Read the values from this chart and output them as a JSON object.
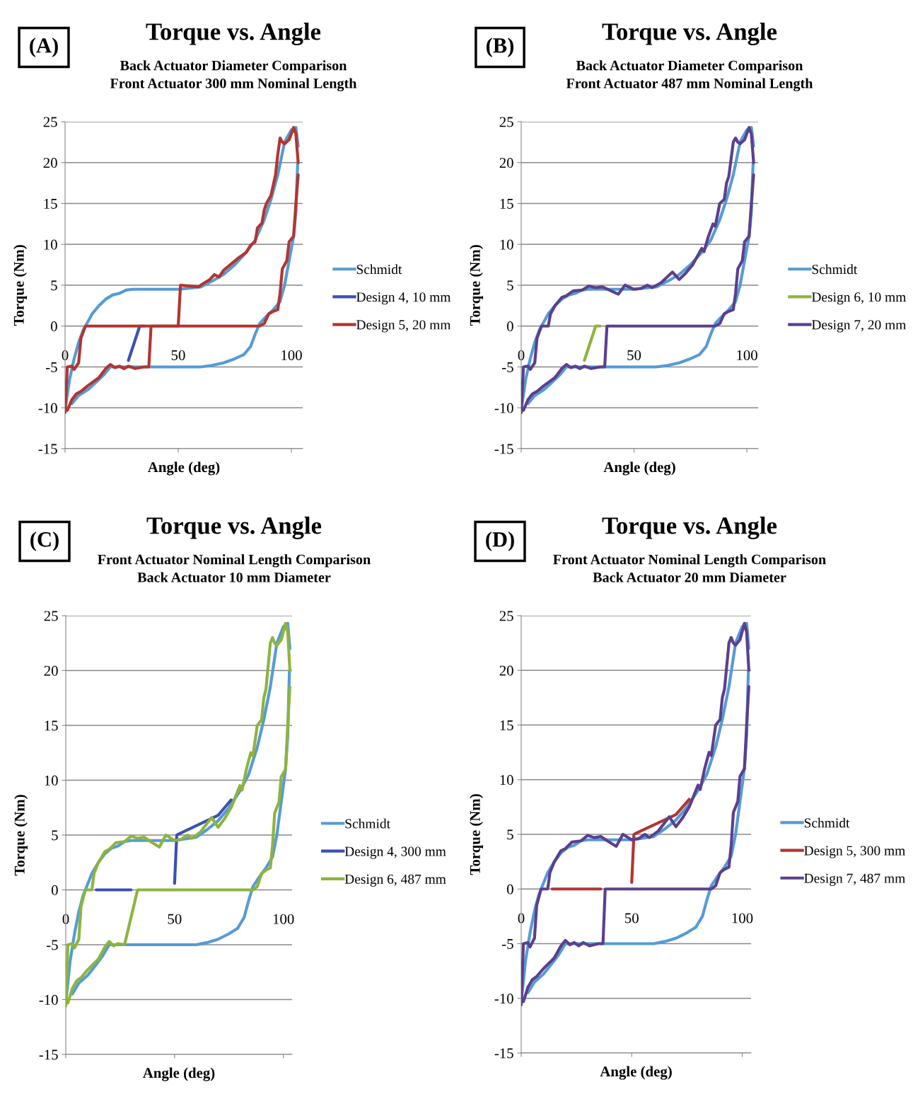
{
  "chart_data": [
    {
      "type": "line",
      "title": "Torque vs. Angle",
      "subtitle": "Back Actuator Diameter Comparison\nFront Actuator 300 mm Nominal Length",
      "xlabel": "Angle (deg)",
      "ylabel": "Torque (Nm)",
      "annotations": [
        "(A)"
      ],
      "xlim": [
        0,
        105
      ],
      "ylim": [
        -15,
        25
      ],
      "xticks": [
        0,
        50,
        100
      ],
      "yticks": [
        -15,
        -10,
        -5,
        0,
        5,
        10,
        15,
        20,
        25
      ],
      "grid": "y",
      "legend": "right",
      "series": [
        {
          "name": "Schmidt",
          "color": "#559bd6",
          "x": [
            0,
            2,
            4,
            6,
            8,
            10,
            12,
            15,
            18,
            21,
            24,
            27,
            30,
            40,
            50,
            60,
            65,
            70,
            75,
            80,
            84,
            88,
            91,
            94,
            97,
            100,
            102,
            103
          ],
          "values": [
            -10.3,
            -6.5,
            -4,
            -2,
            -0.5,
            0.5,
            1.5,
            2.5,
            3.3,
            3.8,
            4.0,
            4.4,
            4.5,
            4.5,
            4.5,
            4.8,
            5.5,
            6.3,
            7.5,
            9,
            10.5,
            13,
            15.5,
            18.5,
            22.5,
            24,
            24.3,
            22
          ]
        },
        {
          "color": "#559bd6",
          "x": [
            3,
            6,
            10,
            14,
            17,
            20,
            25,
            40,
            60,
            65,
            70,
            75,
            79,
            82,
            84,
            86,
            89,
            92,
            95,
            97,
            99,
            101,
            102,
            102.5,
            102.8
          ],
          "values": [
            -9.5,
            -8.5,
            -7.8,
            -6.8,
            -6,
            -5,
            -5,
            -5,
            -5,
            -4.8,
            -4.5,
            -4,
            -3.5,
            -2.5,
            -1,
            0.3,
            1.2,
            2,
            3,
            5,
            8,
            11,
            14,
            18,
            20
          ]
        },
        {
          "name": "Design 4, 10 mm",
          "color": "#3c50b4",
          "x": [
            28,
            33,
            35
          ],
          "values": [
            -4.2,
            0,
            0
          ]
        },
        {
          "name": "Design 5, 20 mm",
          "color": "#b3352f",
          "x": [
            0,
            1,
            3,
            4,
            6,
            7,
            9,
            50,
            51,
            55,
            59,
            61,
            64,
            66,
            68,
            70,
            73,
            76,
            80,
            82,
            84,
            85,
            87,
            88,
            89,
            91,
            93,
            94,
            95,
            96,
            97,
            99,
            101,
            102,
            103
          ],
          "values": [
            -10.6,
            -5,
            -4.9,
            -5.3,
            -4.5,
            -1.5,
            0,
            0,
            5,
            4.9,
            4.8,
            5.2,
            5.7,
            6.3,
            6.0,
            6.8,
            7.5,
            8.2,
            9,
            9.9,
            10.3,
            12,
            12.6,
            14.2,
            15,
            16,
            18.5,
            21,
            23,
            22.5,
            22.3,
            22.8,
            24.3,
            23.5,
            20
          ]
        },
        {
          "color": "#b3352f",
          "x": [
            1,
            3,
            5,
            7,
            10,
            13,
            15,
            18,
            20,
            22,
            24,
            26,
            28,
            31,
            35,
            37,
            38,
            86,
            88,
            90,
            92,
            94,
            95,
            96,
            98,
            99,
            101,
            102,
            103
          ],
          "values": [
            -10.3,
            -9,
            -8.3,
            -8,
            -7.3,
            -6.7,
            -6.3,
            -5.2,
            -4.7,
            -5.1,
            -4.9,
            -5.2,
            -4.9,
            -5.2,
            -5,
            -5,
            0,
            0,
            0.3,
            1.5,
            1.8,
            2,
            4,
            7,
            8,
            10.3,
            11,
            15,
            18.5
          ]
        }
      ]
    },
    {
      "type": "line",
      "title": "Torque vs. Angle",
      "subtitle": "Back Actuator Diameter Comparison\nFront Actuator 487 mm Nominal Length",
      "xlabel": "Angle (deg)",
      "ylabel": "Torque (Nm)",
      "annotations": [
        "(B)"
      ],
      "xlim": [
        0,
        105
      ],
      "ylim": [
        -15,
        25
      ],
      "xticks": [
        0,
        50,
        100
      ],
      "yticks": [
        -15,
        -10,
        -5,
        0,
        5,
        10,
        15,
        20,
        25
      ],
      "grid": "y",
      "legend": "right",
      "series": [
        {
          "name": "Schmidt",
          "color": "#559bd6",
          "x": [
            0,
            2,
            4,
            6,
            8,
            10,
            12,
            15,
            18,
            21,
            24,
            27,
            30,
            40,
            50,
            60,
            65,
            70,
            75,
            80,
            84,
            88,
            91,
            94,
            97,
            100,
            102,
            103
          ],
          "values": [
            -10.3,
            -6.5,
            -4,
            -2,
            -0.5,
            0.5,
            1.5,
            2.5,
            3.3,
            3.8,
            4.0,
            4.4,
            4.5,
            4.5,
            4.5,
            4.8,
            5.5,
            6.3,
            7.5,
            9,
            10.5,
            13,
            15.5,
            18.5,
            22.5,
            24,
            24.3,
            22
          ]
        },
        {
          "color": "#559bd6",
          "x": [
            3,
            6,
            10,
            14,
            17,
            20,
            25,
            40,
            60,
            65,
            70,
            75,
            79,
            82,
            84,
            86,
            89,
            92,
            95,
            97,
            99,
            101,
            102,
            102.5,
            102.8
          ],
          "values": [
            -9.5,
            -8.5,
            -7.8,
            -6.8,
            -6,
            -5,
            -5,
            -5,
            -5,
            -4.8,
            -4.5,
            -4,
            -3.5,
            -2.5,
            -1,
            0.3,
            1.2,
            2,
            3,
            5,
            8,
            11,
            14,
            18,
            20
          ]
        },
        {
          "name": "Design 6, 10 mm",
          "color": "#8db43e",
          "x": [
            28,
            33,
            35
          ],
          "values": [
            -4.2,
            0,
            0
          ]
        },
        {
          "name": "Design 7, 20 mm",
          "color": "#5c3f8e",
          "x": [
            0,
            1,
            3,
            4,
            6,
            7,
            9,
            12,
            13,
            15,
            18,
            20,
            23,
            27,
            30,
            33,
            36,
            39,
            43,
            46,
            50,
            53,
            56,
            58,
            62,
            67,
            70,
            73,
            76,
            78,
            80,
            81,
            83,
            85,
            86,
            88,
            90,
            91,
            92,
            94,
            95,
            96,
            97,
            99,
            101,
            102,
            103
          ],
          "values": [
            -10.6,
            -5,
            -4.9,
            -5.3,
            -4.5,
            -1.5,
            0,
            0,
            1.5,
            2.5,
            3.5,
            3.7,
            4.3,
            4.4,
            4.9,
            4.7,
            4.8,
            4.4,
            3.9,
            5,
            4.5,
            4.6,
            5.0,
            4.7,
            5.3,
            6.6,
            5.7,
            6.5,
            7.5,
            8.5,
            9.5,
            9.1,
            11,
            12.5,
            12.2,
            15,
            15.5,
            17.5,
            18.3,
            22.5,
            23,
            22.5,
            22.3,
            22.8,
            24.3,
            23.5,
            20
          ]
        },
        {
          "color": "#5c3f8e",
          "x": [
            1,
            3,
            5,
            7,
            10,
            13,
            15,
            18,
            20,
            22,
            24,
            26,
            28,
            31,
            35,
            37,
            38,
            86,
            88,
            90,
            92,
            94,
            95,
            96,
            98,
            99,
            101,
            102,
            103
          ],
          "values": [
            -10.3,
            -9,
            -8.3,
            -8,
            -7.3,
            -6.7,
            -6.3,
            -5.2,
            -4.7,
            -5.1,
            -4.9,
            -5.2,
            -4.9,
            -5.2,
            -5,
            -5,
            0,
            0,
            0.3,
            1.5,
            1.8,
            2,
            4,
            7,
            8,
            10.3,
            11,
            15,
            18.5
          ]
        }
      ]
    },
    {
      "type": "line",
      "title": "Torque vs. Angle",
      "subtitle": "Front Actuator Nominal Length Comparison\nBack Actuator 10 mm Diameter",
      "xlabel": "Angle (deg)",
      "ylabel": "Torque (Nm)",
      "annotations": [
        "(C)"
      ],
      "xlim": [
        0,
        104
      ],
      "ylim": [
        -15,
        25
      ],
      "xticks": [
        0,
        50,
        100
      ],
      "yticks": [
        -15,
        -10,
        -5,
        0,
        5,
        10,
        15,
        20,
        25
      ],
      "grid": "y",
      "legend": "right",
      "series": [
        {
          "name": "Schmidt",
          "color": "#559bd6",
          "x": [
            0,
            2,
            4,
            6,
            8,
            10,
            12,
            15,
            18,
            21,
            24,
            27,
            30,
            40,
            50,
            60,
            65,
            70,
            75,
            80,
            84,
            88,
            91,
            94,
            97,
            100,
            102,
            103
          ],
          "values": [
            -10.3,
            -6.5,
            -4,
            -2,
            -0.5,
            0.5,
            1.5,
            2.5,
            3.3,
            3.8,
            4.0,
            4.4,
            4.5,
            4.5,
            4.5,
            4.8,
            5.5,
            6.3,
            7.5,
            9,
            10.5,
            13,
            15.5,
            18.5,
            22.5,
            24,
            24.3,
            22
          ]
        },
        {
          "color": "#559bd6",
          "x": [
            3,
            6,
            10,
            14,
            17,
            20,
            25,
            40,
            60,
            65,
            70,
            75,
            79,
            82,
            84,
            86,
            89,
            92,
            95,
            97,
            99,
            101,
            102,
            102.5,
            102.8
          ],
          "values": [
            -9.5,
            -8.5,
            -7.8,
            -6.8,
            -6,
            -5,
            -5,
            -5,
            -5,
            -4.8,
            -4.5,
            -4,
            -3.5,
            -2.5,
            -1,
            0.3,
            1.2,
            2,
            3,
            5,
            8,
            11,
            14,
            18,
            20
          ]
        },
        {
          "name": "Design 4, 300 mm",
          "color": "#3c50b4",
          "x": [
            14,
            30,
            40,
            50,
            51,
            52,
            70,
            73,
            76
          ],
          "values": [
            0,
            0,
            null,
            0.6,
            5,
            5.1,
            6.8,
            7.5,
            8.2
          ]
        },
        {
          "name": "Design 6, 487 mm",
          "color": "#8db43e",
          "x": [
            0,
            1,
            3,
            4,
            6,
            7,
            9,
            12,
            13,
            15,
            18,
            20,
            23,
            27,
            30,
            33,
            36,
            39,
            43,
            46,
            50,
            53,
            56,
            58,
            62,
            67,
            70,
            73,
            76,
            78,
            80,
            81,
            83,
            85,
            86,
            88,
            90,
            91,
            92,
            94,
            95,
            96,
            97,
            99,
            101,
            102,
            103
          ],
          "values": [
            -10.6,
            -5,
            -4.9,
            -5.3,
            -4.5,
            -1.5,
            0,
            0,
            1.5,
            2.5,
            3.5,
            3.7,
            4.3,
            4.4,
            4.9,
            4.7,
            4.8,
            4.4,
            3.9,
            5,
            4.5,
            4.6,
            5.0,
            4.7,
            5.3,
            6.6,
            5.7,
            6.5,
            7.5,
            8.5,
            9.5,
            9.1,
            11,
            12.5,
            12.2,
            15,
            15.5,
            17.5,
            18.3,
            22.5,
            23,
            22.5,
            22.3,
            22.8,
            24.3,
            23.5,
            20
          ]
        },
        {
          "color": "#8db43e",
          "x": [
            1,
            3,
            5,
            7,
            10,
            13,
            15,
            18,
            20,
            22,
            24,
            27,
            33,
            86,
            88,
            90,
            92,
            94,
            95,
            96,
            98,
            99,
            101,
            102,
            103
          ],
          "values": [
            -10.3,
            -9,
            -8.3,
            -8,
            -7.3,
            -6.7,
            -6.3,
            -5.2,
            -4.7,
            -5.1,
            -4.9,
            -5,
            0,
            0,
            0.3,
            1.5,
            1.8,
            2,
            4,
            7,
            8,
            10.3,
            11,
            15,
            18.5
          ]
        }
      ]
    },
    {
      "type": "line",
      "title": "Torque vs. Angle",
      "subtitle": "Front Actuator Nominal Length Comparison\nBack Actuator 20 mm Diameter",
      "xlabel": "Angle (deg)",
      "ylabel": "Torque (Nm)",
      "annotations": [
        "(D)"
      ],
      "xlim": [
        0,
        104
      ],
      "ylim": [
        -15,
        25
      ],
      "xticks": [
        0,
        50,
        100
      ],
      "yticks": [
        -15,
        -10,
        -5,
        0,
        5,
        10,
        15,
        20,
        25
      ],
      "grid": "y",
      "legend": "right",
      "series": [
        {
          "name": "Schmidt",
          "color": "#559bd6",
          "x": [
            0,
            2,
            4,
            6,
            8,
            10,
            12,
            15,
            18,
            21,
            24,
            27,
            30,
            40,
            50,
            60,
            65,
            70,
            75,
            80,
            84,
            88,
            91,
            94,
            97,
            100,
            102,
            103
          ],
          "values": [
            -10.3,
            -6.5,
            -4,
            -2,
            -0.5,
            0.5,
            1.5,
            2.5,
            3.3,
            3.8,
            4.0,
            4.4,
            4.5,
            4.5,
            4.5,
            4.8,
            5.5,
            6.3,
            7.5,
            9,
            10.5,
            13,
            15.5,
            18.5,
            22.5,
            24,
            24.3,
            22
          ]
        },
        {
          "color": "#559bd6",
          "x": [
            3,
            6,
            10,
            14,
            17,
            20,
            25,
            40,
            60,
            65,
            70,
            75,
            79,
            82,
            84,
            86,
            89,
            92,
            95,
            97,
            99,
            101,
            102,
            102.5,
            102.8
          ],
          "values": [
            -9.5,
            -8.5,
            -7.8,
            -6.8,
            -6,
            -5,
            -5,
            -5,
            -5,
            -4.8,
            -4.5,
            -4,
            -3.5,
            -2.5,
            -1,
            0.3,
            1.2,
            2,
            3,
            5,
            8,
            11,
            14,
            18,
            20
          ]
        },
        {
          "name": "Design 5, 300 mm",
          "color": "#b3352f",
          "x": [
            14,
            36,
            40,
            50,
            51,
            52,
            70,
            73,
            76
          ],
          "values": [
            0,
            0,
            null,
            0.6,
            5,
            5.1,
            6.8,
            7.5,
            8.2
          ]
        },
        {
          "name": "Design 7, 487 mm",
          "color": "#5c3f8e",
          "x": [
            0,
            1,
            3,
            4,
            6,
            7,
            9,
            12,
            13,
            15,
            18,
            20,
            23,
            27,
            30,
            33,
            36,
            39,
            43,
            46,
            50,
            53,
            56,
            58,
            62,
            67,
            70,
            73,
            76,
            78,
            80,
            81,
            83,
            85,
            86,
            88,
            90,
            91,
            92,
            94,
            95,
            96,
            97,
            99,
            101,
            102,
            103
          ],
          "values": [
            -10.6,
            -5,
            -4.9,
            -5.3,
            -4.5,
            -1.5,
            0,
            0,
            1.5,
            2.5,
            3.5,
            3.7,
            4.3,
            4.4,
            4.9,
            4.7,
            4.8,
            4.4,
            3.9,
            5,
            4.5,
            4.6,
            5.0,
            4.7,
            5.3,
            6.6,
            5.7,
            6.5,
            7.5,
            8.5,
            9.5,
            9.1,
            11,
            12.5,
            12.2,
            15,
            15.5,
            17.5,
            18.3,
            22.5,
            23,
            22.5,
            22.3,
            22.8,
            24.3,
            23.5,
            20
          ]
        },
        {
          "color": "#5c3f8e",
          "x": [
            1,
            3,
            5,
            7,
            10,
            13,
            15,
            18,
            20,
            22,
            24,
            26,
            28,
            31,
            35,
            37,
            38,
            86,
            88,
            90,
            92,
            94,
            95,
            96,
            98,
            99,
            101,
            102,
            103
          ],
          "values": [
            -10.3,
            -9,
            -8.3,
            -8,
            -7.3,
            -6.7,
            -6.3,
            -5.2,
            -4.7,
            -5.1,
            -4.9,
            -5.2,
            -4.9,
            -5.2,
            -5,
            -5,
            0,
            0,
            0.3,
            1.5,
            1.8,
            2,
            4,
            7,
            8,
            10.3,
            11,
            15,
            18.5
          ]
        }
      ]
    }
  ]
}
